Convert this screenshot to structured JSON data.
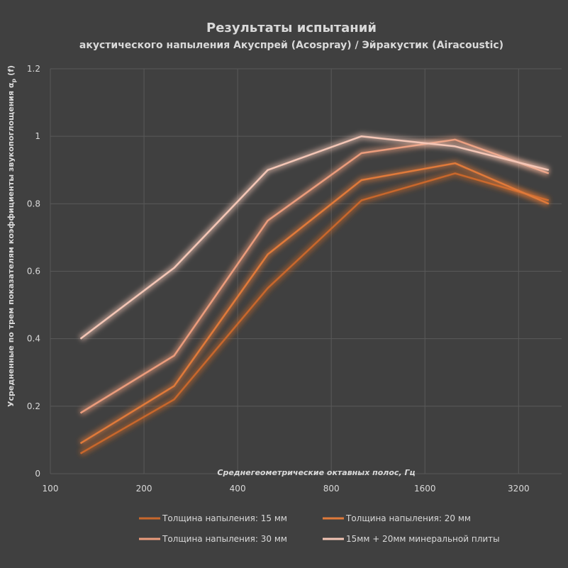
{
  "chart_data": {
    "type": "line",
    "title": "Результаты испытаний",
    "subtitle": "акустического напыления Акуспрей (Acospray) / Эйракустик (Airacoustic)",
    "xlabel": "Среднегеометрические октавных полос, Гц",
    "ylabel_main": "Усредненные по трем показателям коэффициенты звукопоглощения α",
    "ylabel_sub": "p",
    "ylabel_end": "(f)",
    "x_scale": "log2",
    "xlim": [
      100,
      4400
    ],
    "ylim": [
      0,
      1.2
    ],
    "x_ticks": [
      100,
      200,
      400,
      800,
      1600,
      3200
    ],
    "y_ticks": [
      0,
      0.2,
      0.4,
      0.6,
      0.8,
      1,
      1.2
    ],
    "x": [
      125,
      250,
      500,
      1000,
      2000,
      4000
    ],
    "grid": true,
    "legend_position": "bottom",
    "series": [
      {
        "name": "Толщина напыления: 15 мм",
        "values": [
          0.06,
          0.22,
          0.55,
          0.81,
          0.89,
          0.81
        ],
        "color": "#c8672c"
      },
      {
        "name": "Толщина напыления: 20 мм",
        "values": [
          0.09,
          0.26,
          0.65,
          0.87,
          0.92,
          0.8
        ],
        "color": "#e07a3a"
      },
      {
        "name": "Толщина напыления: 30 мм",
        "values": [
          0.18,
          0.35,
          0.75,
          0.95,
          0.99,
          0.89
        ],
        "color": "#eb9c7c"
      },
      {
        "name": "15мм + 20мм минеральной плиты",
        "values": [
          0.4,
          0.61,
          0.9,
          1.0,
          0.97,
          0.9
        ],
        "color": "#f4c6b6"
      }
    ]
  }
}
